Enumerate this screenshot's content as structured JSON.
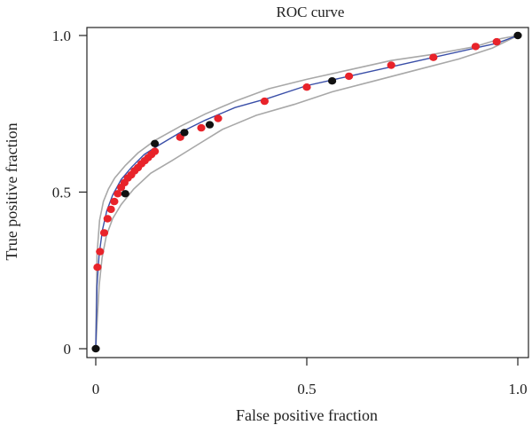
{
  "chart_data": {
    "type": "scatter",
    "title": "ROC curve",
    "xlabel": "False positive fraction",
    "ylabel": "True positive fraction",
    "xlim": [
      0,
      1
    ],
    "ylim": [
      0,
      1
    ],
    "x_ticks": [
      0,
      0.5,
      1.0
    ],
    "x_tick_labels": [
      "0",
      "0.5",
      "1.0"
    ],
    "y_ticks": [
      0,
      0.5,
      1.0
    ],
    "y_tick_labels": [
      "0",
      "0.5",
      "1.0"
    ],
    "grid": false,
    "colors": {
      "fitted_curve": "#3a4fa8",
      "confidence_band": "#a8a8a8",
      "empirical_points": "#e8232a",
      "highlighted_points": "#111111",
      "axes": "#222222"
    },
    "fitted_curve": {
      "x": [
        0.0,
        0.003,
        0.008,
        0.016,
        0.026,
        0.04,
        0.06,
        0.085,
        0.115,
        0.15,
        0.2,
        0.26,
        0.33,
        0.41,
        0.5,
        0.6,
        0.7,
        0.8,
        0.9,
        0.95,
        1.0
      ],
      "y": [
        0.0,
        0.2,
        0.3,
        0.38,
        0.44,
        0.49,
        0.54,
        0.58,
        0.62,
        0.65,
        0.69,
        0.73,
        0.77,
        0.8,
        0.84,
        0.87,
        0.9,
        0.93,
        0.96,
        0.975,
        1.0
      ]
    },
    "confidence_band": {
      "upper": {
        "x": [
          0.0,
          0.003,
          0.009,
          0.018,
          0.03,
          0.045,
          0.07,
          0.1,
          0.14,
          0.2,
          0.26,
          0.33,
          0.41,
          0.5,
          0.6,
          0.7,
          0.8,
          0.9,
          0.96,
          1.0
        ],
        "y": [
          0.0,
          0.3,
          0.41,
          0.47,
          0.51,
          0.545,
          0.585,
          0.625,
          0.665,
          0.71,
          0.75,
          0.79,
          0.83,
          0.86,
          0.89,
          0.92,
          0.94,
          0.965,
          0.99,
          1.0
        ]
      },
      "lower": {
        "x": [
          0.0,
          0.003,
          0.008,
          0.015,
          0.025,
          0.04,
          0.06,
          0.09,
          0.13,
          0.18,
          0.24,
          0.3,
          0.38,
          0.47,
          0.56,
          0.66,
          0.76,
          0.86,
          0.94,
          1.0
        ],
        "y": [
          0.0,
          0.08,
          0.2,
          0.29,
          0.36,
          0.415,
          0.46,
          0.51,
          0.56,
          0.6,
          0.65,
          0.7,
          0.745,
          0.78,
          0.82,
          0.855,
          0.89,
          0.925,
          0.96,
          1.0
        ]
      }
    },
    "series": [
      {
        "role": "empirical_points",
        "x": [
          0.004,
          0.01,
          0.02,
          0.028,
          0.036,
          0.044,
          0.052,
          0.06,
          0.068,
          0.076,
          0.084,
          0.092,
          0.1,
          0.108,
          0.116,
          0.124,
          0.132,
          0.14,
          0.2,
          0.25,
          0.29,
          0.4,
          0.5,
          0.6,
          0.7,
          0.8,
          0.9,
          0.95
        ],
        "y": [
          0.26,
          0.31,
          0.37,
          0.415,
          0.445,
          0.47,
          0.495,
          0.515,
          0.53,
          0.545,
          0.555,
          0.568,
          0.578,
          0.59,
          0.6,
          0.61,
          0.62,
          0.63,
          0.675,
          0.705,
          0.735,
          0.79,
          0.835,
          0.87,
          0.905,
          0.93,
          0.965,
          0.98
        ]
      },
      {
        "role": "highlighted_points",
        "x": [
          0.0,
          0.07,
          0.14,
          0.21,
          0.27,
          0.56,
          1.0
        ],
        "y": [
          0.0,
          0.495,
          0.655,
          0.69,
          0.715,
          0.855,
          1.0
        ]
      }
    ]
  }
}
